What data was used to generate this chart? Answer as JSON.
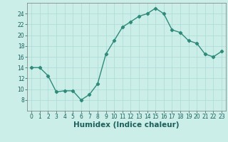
{
  "x": [
    0,
    1,
    2,
    3,
    4,
    5,
    6,
    7,
    8,
    9,
    10,
    11,
    12,
    13,
    14,
    15,
    16,
    17,
    18,
    19,
    20,
    21,
    22,
    23
  ],
  "y": [
    14,
    14,
    12.5,
    9.5,
    9.7,
    9.7,
    8,
    9,
    11,
    16.5,
    19,
    21.5,
    22.5,
    23.5,
    24,
    25,
    24,
    21,
    20.5,
    19,
    18.5,
    16.5,
    16,
    17
  ],
  "line_color": "#2e8b7a",
  "marker": "D",
  "marker_size": 2.2,
  "bg_color": "#cceee8",
  "grid_color": "#b0ddd8",
  "xlabel": "Humidex (Indice chaleur)",
  "xlim": [
    -0.5,
    23.5
  ],
  "ylim": [
    6,
    26
  ],
  "yticks": [
    8,
    10,
    12,
    14,
    16,
    18,
    20,
    22,
    24
  ],
  "xticks": [
    0,
    1,
    2,
    3,
    4,
    5,
    6,
    7,
    8,
    9,
    10,
    11,
    12,
    13,
    14,
    15,
    16,
    17,
    18,
    19,
    20,
    21,
    22,
    23
  ],
  "xtick_labels": [
    "0",
    "1",
    "2",
    "3",
    "4",
    "5",
    "6",
    "7",
    "8",
    "9",
    "10",
    "11",
    "12",
    "13",
    "14",
    "15",
    "16",
    "17",
    "18",
    "19",
    "20",
    "21",
    "22",
    "23"
  ],
  "tick_fontsize": 5.5,
  "xlabel_fontsize": 7.5,
  "line_width": 1.0
}
